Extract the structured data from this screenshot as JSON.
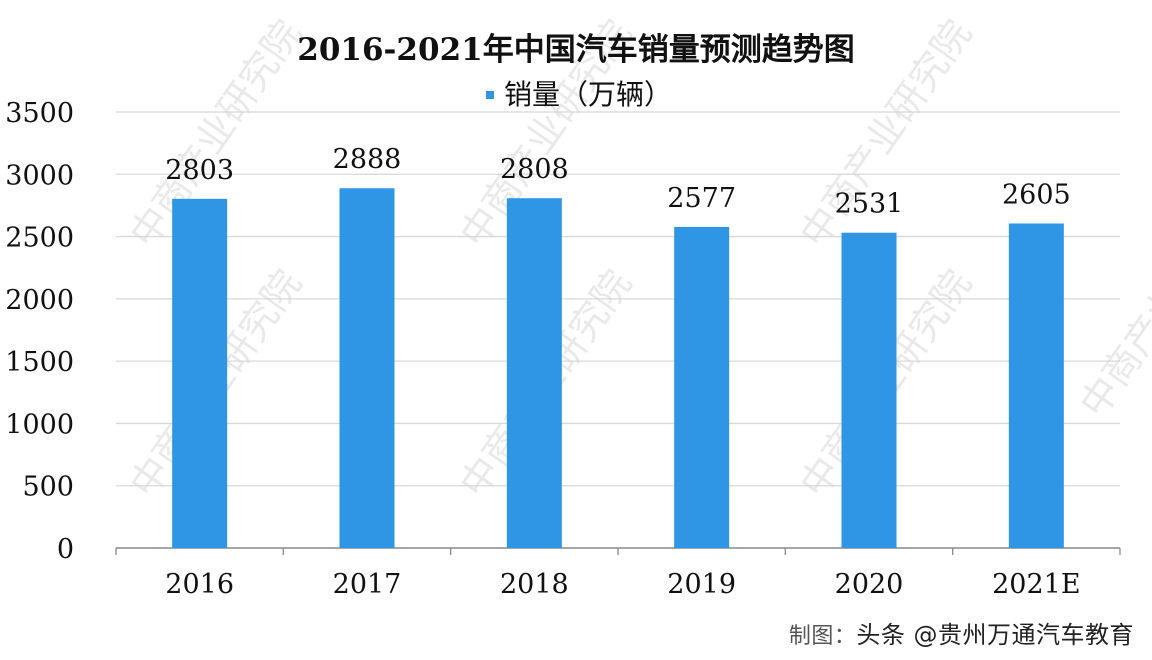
{
  "chart_data": {
    "type": "bar",
    "title": "2016-2021年中国汽车销量预测趋势图",
    "legend": "销量（万辆）",
    "categories": [
      "2016",
      "2017",
      "2018",
      "2019",
      "2020",
      "2021E"
    ],
    "values": [
      2803,
      2888,
      2808,
      2577,
      2531,
      2605
    ],
    "value_labels": [
      "2803",
      "2888",
      "2808",
      "2577",
      "2531",
      "2605"
    ],
    "y_ticks": [
      "0",
      "500",
      "1000",
      "1500",
      "2000",
      "2500",
      "3000",
      "3500"
    ],
    "ylim": [
      0,
      3500
    ],
    "grid": true,
    "legend_position": "top-center",
    "bar_color": "#2f96e5",
    "grid_color": "#d8d8d8",
    "text_color": "#111111"
  },
  "watermark": {
    "text": "中商产业研究院"
  },
  "footer": {
    "credit_prefix": "制图：",
    "credit": "头条 @贵州万通汽车教育"
  }
}
